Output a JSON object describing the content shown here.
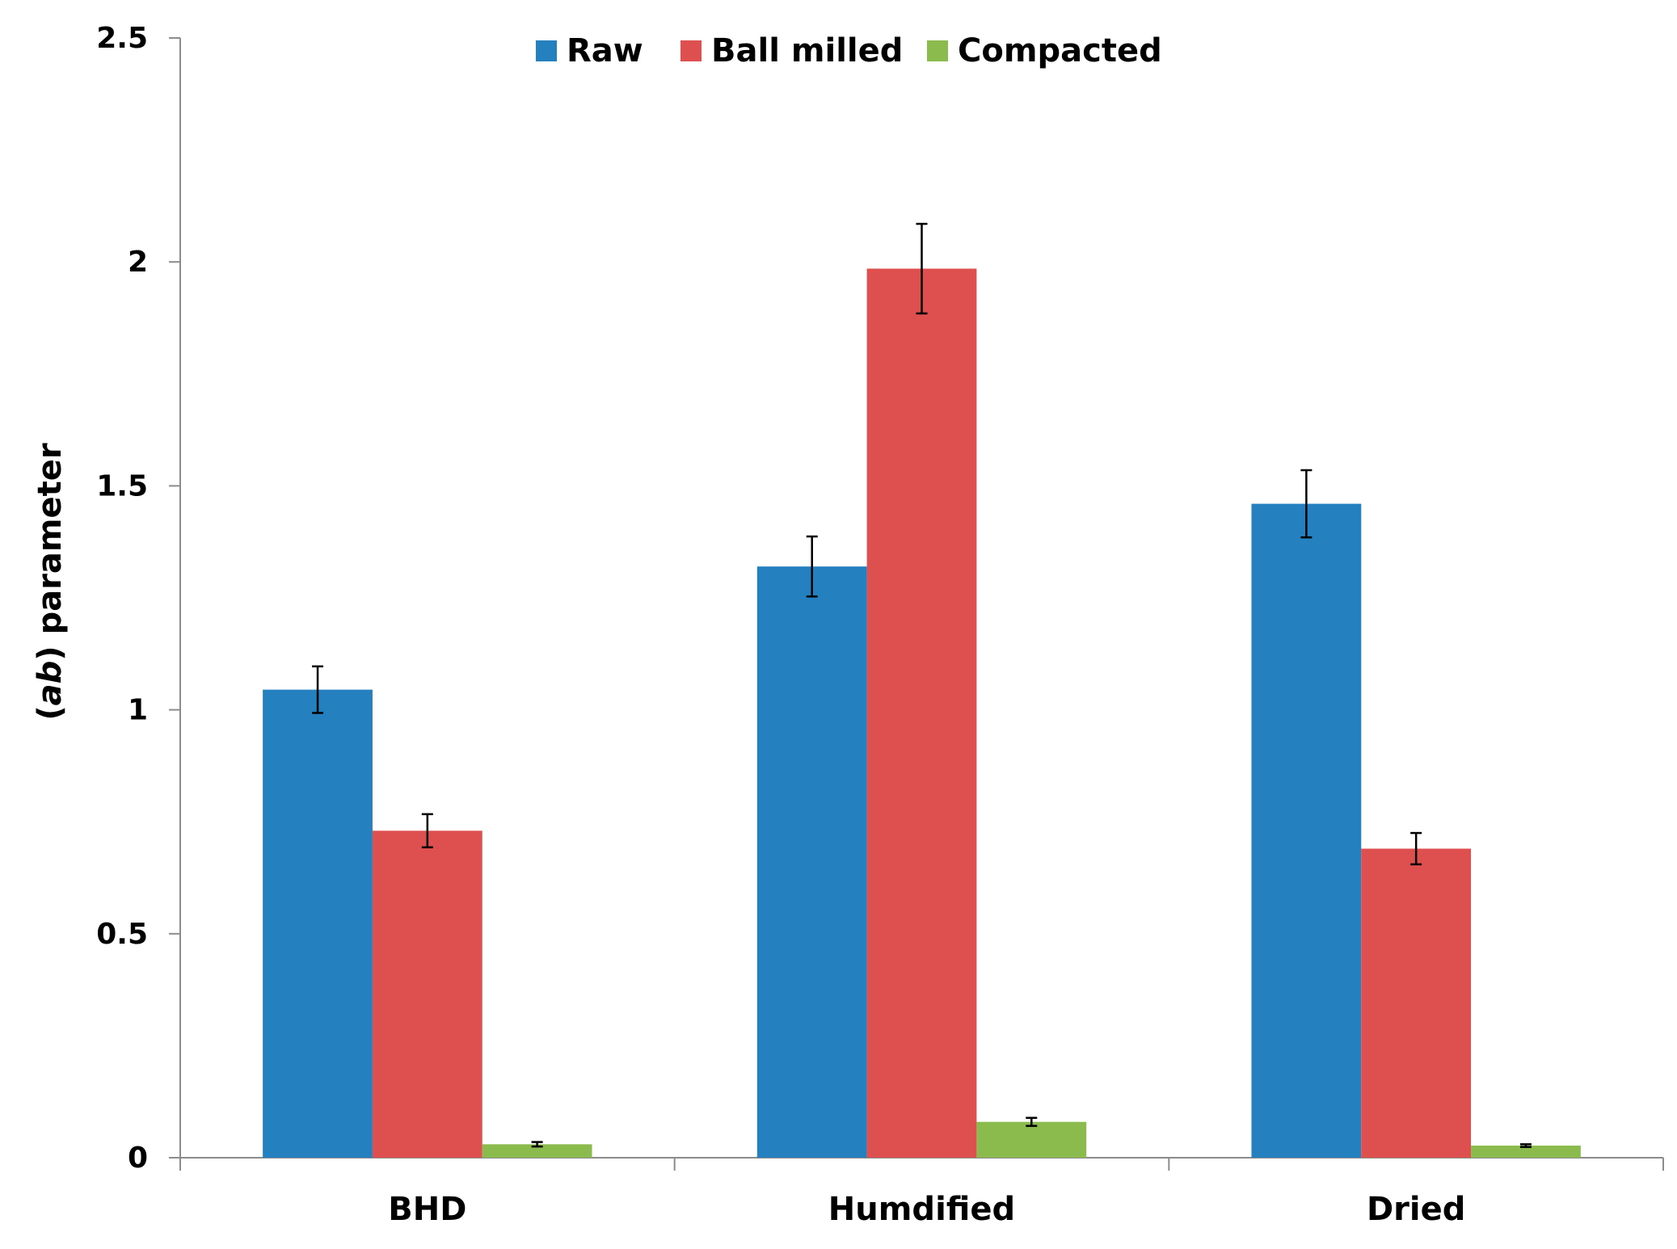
{
  "chart_data": {
    "type": "bar",
    "title": "",
    "xlabel": "",
    "ylabel_prefix": "(",
    "ylabel_italic": "ab",
    "ylabel_suffix": ") parameter",
    "ylim": [
      0,
      2.5
    ],
    "yticks": [
      0,
      0.5,
      1,
      1.5,
      2,
      2.5
    ],
    "ytick_labels": [
      "0",
      "0.5",
      "1",
      "1.5",
      "2",
      "2.5"
    ],
    "grid": false,
    "legend_position": "top-center",
    "categories": [
      "BHD",
      "Humdified",
      "Dried"
    ],
    "series": [
      {
        "name": "Raw",
        "color": "#2580c0",
        "values": [
          1.045,
          1.32,
          1.46
        ],
        "errors": [
          0.052,
          0.067,
          0.075
        ]
      },
      {
        "name": "Ball milled",
        "color": "#de4f4f",
        "values": [
          0.73,
          1.985,
          0.69
        ],
        "errors": [
          0.037,
          0.1,
          0.035
        ]
      },
      {
        "name": "Compacted",
        "color": "#8bbb4d",
        "values": [
          0.03,
          0.08,
          0.027
        ],
        "errors": [
          0.005,
          0.009,
          0.003
        ]
      }
    ]
  }
}
